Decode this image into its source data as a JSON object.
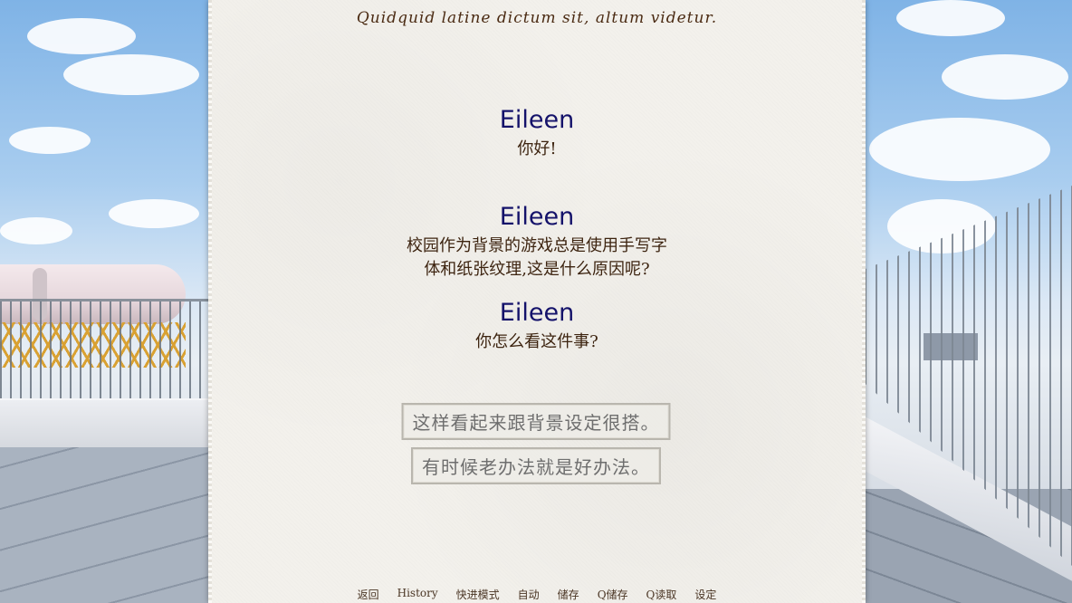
{
  "quote": "Quidquid latine dictum sit, altum videtur.",
  "history": [
    {
      "speaker": "Eileen",
      "text": "你好!"
    },
    {
      "speaker": "Eileen",
      "text": "校园作为背景的游戏总是使用手写字\n体和纸张纹理,这是什么原因呢?"
    },
    {
      "speaker": "Eileen",
      "text": "你怎么看这件事?"
    }
  ],
  "choices": [
    "这样看起来跟背景设定很搭。",
    "有时候老办法就是好办法。"
  ],
  "quick_menu": [
    "返回",
    "History",
    "快进模式",
    "自动",
    "储存",
    "Q储存",
    "Q读取",
    "设定"
  ]
}
